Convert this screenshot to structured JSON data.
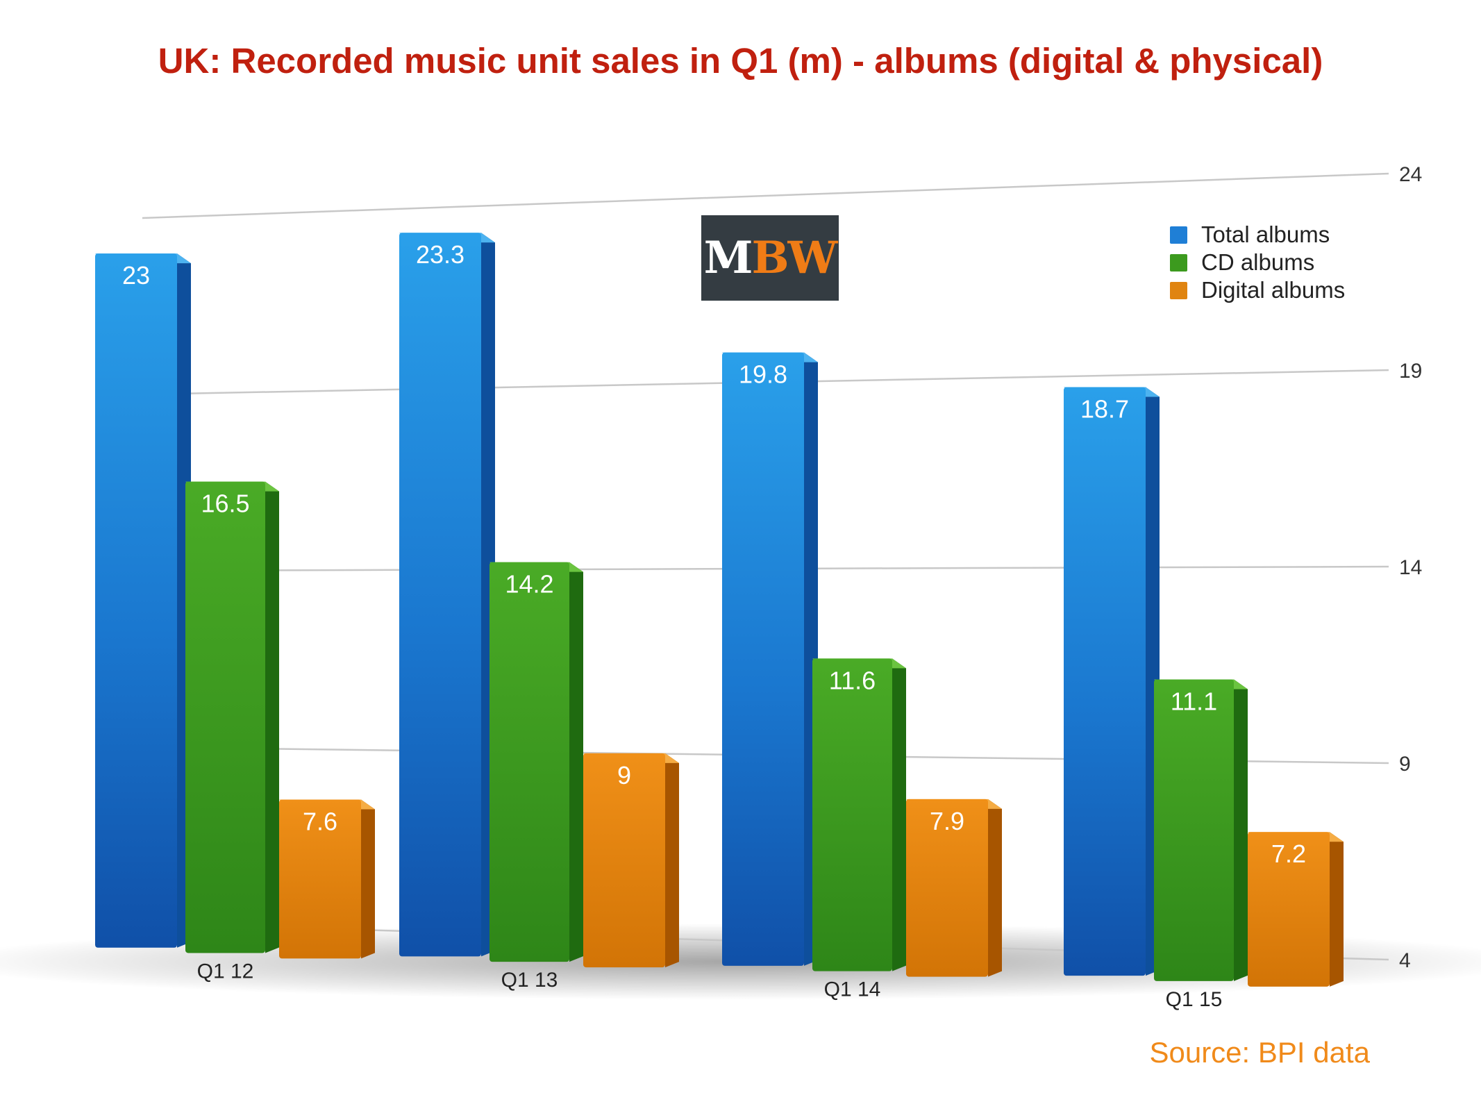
{
  "chart_data": {
    "type": "bar",
    "title": "UK: Recorded music unit sales in Q1 (m) - albums (digital & physical)",
    "categories": [
      "Q1 12",
      "Q1 13",
      "Q1 14",
      "Q1 15"
    ],
    "series": [
      {
        "name": "Total albums",
        "values": [
          23,
          23.3,
          19.8,
          18.7
        ],
        "color": "#1f7fd6"
      },
      {
        "name": "CD albums",
        "values": [
          16.5,
          14.2,
          11.6,
          11.1
        ],
        "color": "#3c9a1e"
      },
      {
        "name": "Digital albums",
        "values": [
          7.6,
          9,
          7.9,
          7.2
        ],
        "color": "#e08410"
      }
    ],
    "y_ticks": [
      "24",
      "19",
      "14",
      "9",
      "4"
    ],
    "ylim": [
      4,
      24
    ],
    "grid": true,
    "legend": "top-right",
    "data_labels": true
  },
  "logo": {
    "first": "M",
    "rest": "BW"
  },
  "source": "Source: BPI data"
}
